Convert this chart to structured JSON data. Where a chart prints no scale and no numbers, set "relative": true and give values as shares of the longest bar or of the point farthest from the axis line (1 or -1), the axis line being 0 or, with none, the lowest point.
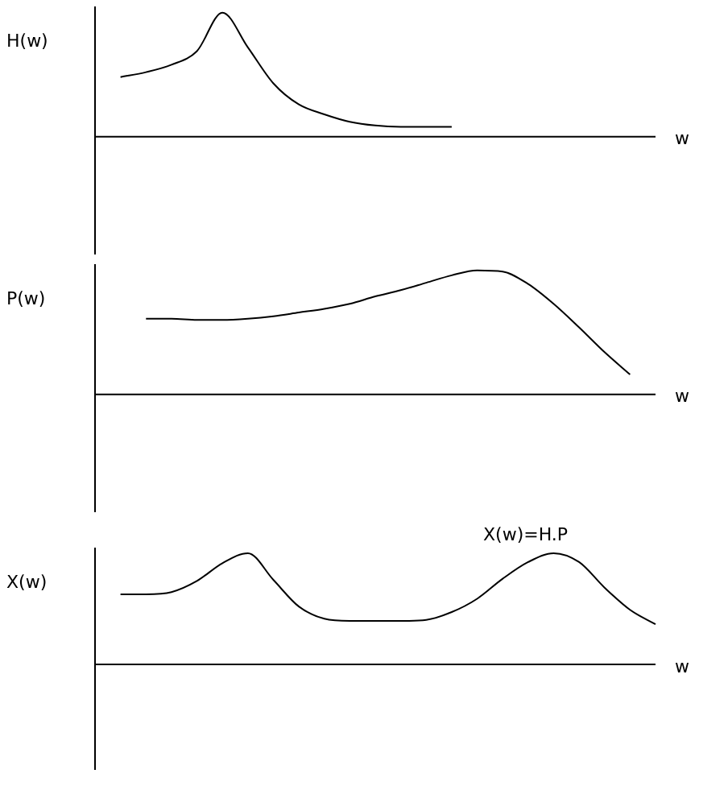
{
  "chart_data": [
    {
      "type": "line",
      "ylabel": "H(w)",
      "xlabel": "w",
      "relative": true,
      "marker": "none",
      "categories": [
        null,
        null,
        null,
        null,
        null,
        null,
        null,
        null,
        null,
        null,
        null,
        null,
        null,
        null,
        null,
        null,
        null,
        null,
        null,
        null,
        null,
        null,
        null
      ],
      "series": [
        {
          "color": "#000000",
          "values": [
            null,
            0.48,
            0.52,
            0.58,
            0.69,
            1.0,
            0.72,
            0.43,
            0.26,
            0.18,
            0.12,
            0.09,
            0.08,
            0.08,
            0.08,
            null,
            null,
            null,
            null,
            null,
            null,
            null,
            null
          ]
        }
      ]
    },
    {
      "type": "line",
      "ylabel": "P(w)",
      "xlabel": "w",
      "relative": true,
      "marker": "none",
      "categories": [
        null,
        null,
        null,
        null,
        null,
        null,
        null,
        null,
        null,
        null,
        null,
        null,
        null,
        null,
        null,
        null,
        null,
        null,
        null,
        null,
        null,
        null,
        null
      ],
      "series": [
        {
          "color": "#000000",
          "values": [
            null,
            null,
            0.61,
            0.61,
            0.6,
            0.6,
            0.61,
            0.63,
            0.66,
            0.69,
            0.73,
            0.79,
            0.84,
            0.9,
            0.96,
            1.0,
            0.99,
            0.89,
            0.73,
            0.54,
            0.34,
            0.16,
            null
          ]
        }
      ]
    },
    {
      "type": "line",
      "ylabel": "X(w)",
      "xlabel": "w",
      "relative": true,
      "marker": "none",
      "annotations": [
        "X(w)=H.P"
      ],
      "categories": [
        null,
        null,
        null,
        null,
        null,
        null,
        null,
        null,
        null,
        null,
        null,
        null,
        null,
        null,
        null,
        null,
        null,
        null,
        null,
        null,
        null,
        null,
        null
      ],
      "series": [
        {
          "color": "#000000",
          "values": [
            null,
            0.63,
            0.63,
            0.65,
            0.75,
            0.91,
            1.0,
            0.76,
            0.52,
            0.41,
            0.39,
            0.39,
            0.39,
            0.4,
            0.47,
            0.59,
            0.77,
            0.92,
            1.0,
            0.92,
            0.69,
            0.49,
            0.36
          ]
        }
      ]
    }
  ]
}
